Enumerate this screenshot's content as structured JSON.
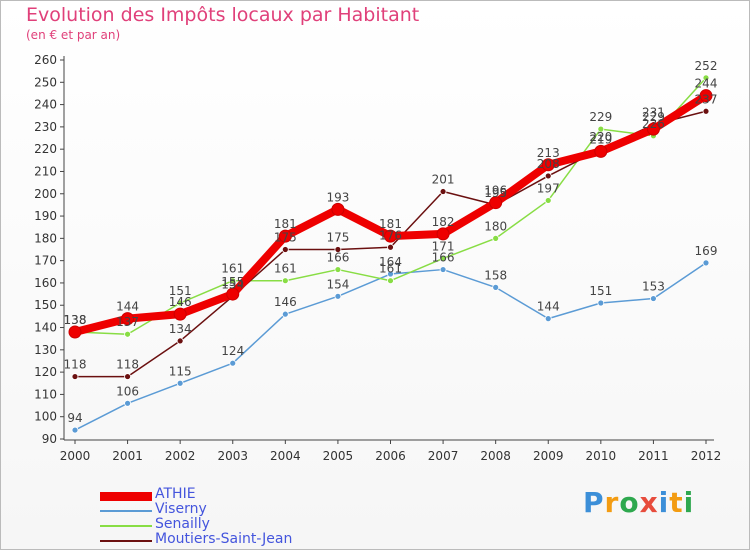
{
  "chart_data": {
    "type": "line",
    "title": "Evolution des Impôts locaux par Habitant",
    "subtitle": "(en € et par an)",
    "x": [
      "2000",
      "2001",
      "2002",
      "2003",
      "2004",
      "2005",
      "2006",
      "2007",
      "2008",
      "2009",
      "2010",
      "2011",
      "2012"
    ],
    "ylim": [
      90,
      260
    ],
    "yticks": [
      90,
      100,
      110,
      120,
      130,
      140,
      150,
      160,
      170,
      180,
      190,
      200,
      210,
      220,
      230,
      240,
      250,
      260
    ],
    "grid": false,
    "series": [
      {
        "name": "ATHIE",
        "color": "#ee0000",
        "values": [
          138,
          144,
          146,
          155,
          181,
          193,
          181,
          182,
          196,
          213,
          219,
          229,
          244
        ]
      },
      {
        "name": "Viserny",
        "color": "#5b9bd5",
        "values": [
          94,
          106,
          115,
          124,
          146,
          154,
          164,
          166,
          158,
          144,
          151,
          153,
          169
        ]
      },
      {
        "name": "Senailly",
        "color": "#88dd44",
        "values": [
          138,
          137,
          151,
          161,
          161,
          166,
          161,
          171,
          180,
          197,
          229,
          226,
          252
        ]
      },
      {
        "name": "Moutiers-Saint-Jean",
        "color": "#6b1010",
        "values": [
          118,
          118,
          134,
          154,
          175,
          175,
          176,
          201,
          195,
          208,
          220,
          231,
          237
        ]
      }
    ],
    "value_labels": {
      "ATHIE": [
        "138",
        "144",
        "146",
        "155",
        "181",
        "193",
        "181",
        "182",
        "196",
        "213",
        "219",
        "229",
        "244"
      ],
      "Viserny": [
        "94",
        "106",
        "115",
        "124",
        "146",
        "154",
        "164",
        "166",
        "158",
        "144",
        "151",
        "153",
        "169"
      ],
      "Senailly": [
        "138",
        "137",
        "151",
        "161",
        "161",
        "166",
        "161",
        "171",
        "180",
        "197",
        "229",
        "226",
        "252"
      ],
      "Moutiers-Saint-Jean": [
        "118",
        "118",
        "134",
        "154",
        "175",
        "175",
        "176",
        "201",
        "195",
        "208",
        "220",
        "231",
        "237"
      ]
    }
  },
  "legend": {
    "items": [
      {
        "label": "ATHIE"
      },
      {
        "label": "Viserny"
      },
      {
        "label": "Senailly"
      },
      {
        "label": "Moutiers-Saint-Jean"
      }
    ]
  },
  "logo": {
    "letters": [
      "P",
      "r",
      "o",
      "x",
      "i",
      "t",
      "i"
    ],
    "colors": [
      "#3c8fd8",
      "#f39c12",
      "#2ea84e",
      "#e74c3c",
      "#3c8fd8",
      "#f39c12",
      "#2ea84e"
    ]
  }
}
